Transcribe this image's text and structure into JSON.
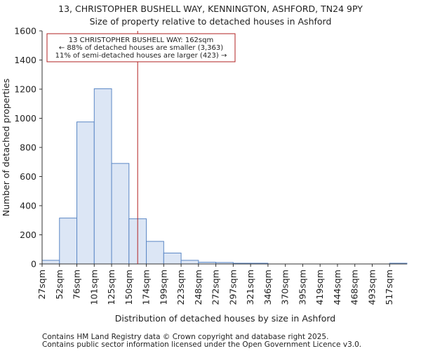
{
  "chart_data": {
    "type": "bar",
    "title_line1": "13, CHRISTOPHER BUSHELL WAY, KENNINGTON, ASHFORD, TN24 9PY",
    "title_line2": "Size of property relative to detached houses in Ashford",
    "xlabel": "Distribution of detached houses by size in Ashford",
    "ylabel": "Number of detached properties",
    "ylim": [
      0,
      1600
    ],
    "yticks": [
      0,
      200,
      400,
      600,
      800,
      1000,
      1200,
      1400,
      1600
    ],
    "categories": [
      "27sqm",
      "52sqm",
      "76sqm",
      "101sqm",
      "125sqm",
      "150sqm",
      "174sqm",
      "199sqm",
      "223sqm",
      "248sqm",
      "272sqm",
      "297sqm",
      "321sqm",
      "346sqm",
      "370sqm",
      "395sqm",
      "419sqm",
      "444sqm",
      "468sqm",
      "493sqm",
      "517sqm"
    ],
    "values": [
      25,
      315,
      975,
      1203,
      690,
      310,
      155,
      75,
      25,
      12,
      10,
      5,
      5,
      0,
      0,
      0,
      0,
      0,
      0,
      0,
      5
    ],
    "bar_fill": "#dce6f5",
    "bar_stroke": "#5b87c5",
    "marker": {
      "value_index": 5.5,
      "color": "#b22222",
      "label_line1": "13 CHRISTOPHER BUSHELL WAY: 162sqm",
      "label_line2": "← 88% of detached houses are smaller (3,363)",
      "label_line3": "11% of semi-detached houses are larger (423) →"
    },
    "footer_line1": "Contains HM Land Registry data © Crown copyright and database right 2025.",
    "footer_line2": "Contains public sector information licensed under the Open Government Licence v3.0."
  }
}
